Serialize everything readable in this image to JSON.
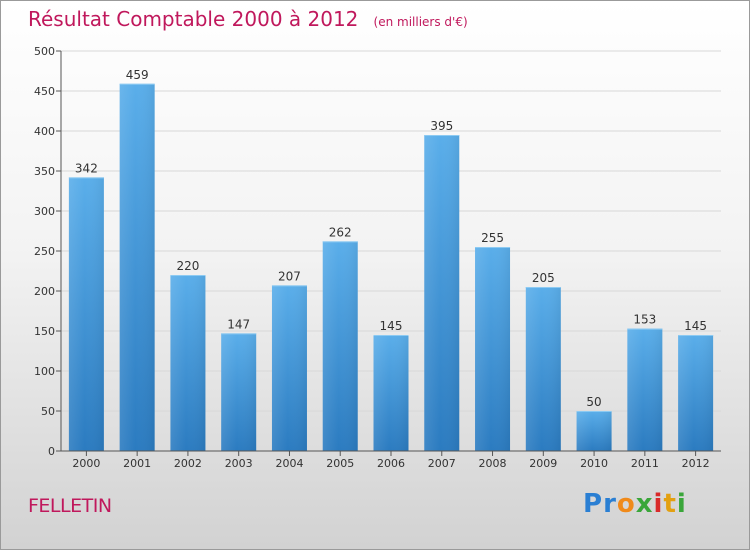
{
  "header": {
    "title": "Résultat Comptable 2000 à 2012",
    "unit": "(en milliers d'€)"
  },
  "footer": {
    "commune": "FELLETIN",
    "logo_letters": [
      "P",
      "r",
      "o",
      "x",
      "i",
      "t",
      "i"
    ],
    "logo_colors": [
      "#2a7fd3",
      "#2a7fd3",
      "#f08a1a",
      "#3aa63a",
      "#d92a2a",
      "#e3a010",
      "#3aa63a"
    ]
  },
  "colors": {
    "title": "#c0185c",
    "bar_top": "#5aaeea",
    "bar_bottom": "#2b7bc0",
    "axis": "#555555",
    "grid": "#d8d8d8"
  },
  "chart_data": {
    "type": "bar",
    "title": "Résultat Comptable 2000 à 2012",
    "ylabel": "en milliers d'€",
    "xlabel": "",
    "categories": [
      "2000",
      "2001",
      "2002",
      "2003",
      "2004",
      "2005",
      "2006",
      "2007",
      "2008",
      "2009",
      "2010",
      "2011",
      "2012"
    ],
    "values": [
      342,
      459,
      220,
      147,
      207,
      262,
      145,
      395,
      255,
      205,
      50,
      153,
      145
    ],
    "ylim": [
      0,
      500
    ],
    "yticks": [
      0,
      50,
      100,
      150,
      200,
      250,
      300,
      350,
      400,
      450,
      500
    ],
    "grid": true,
    "legend": "none"
  }
}
